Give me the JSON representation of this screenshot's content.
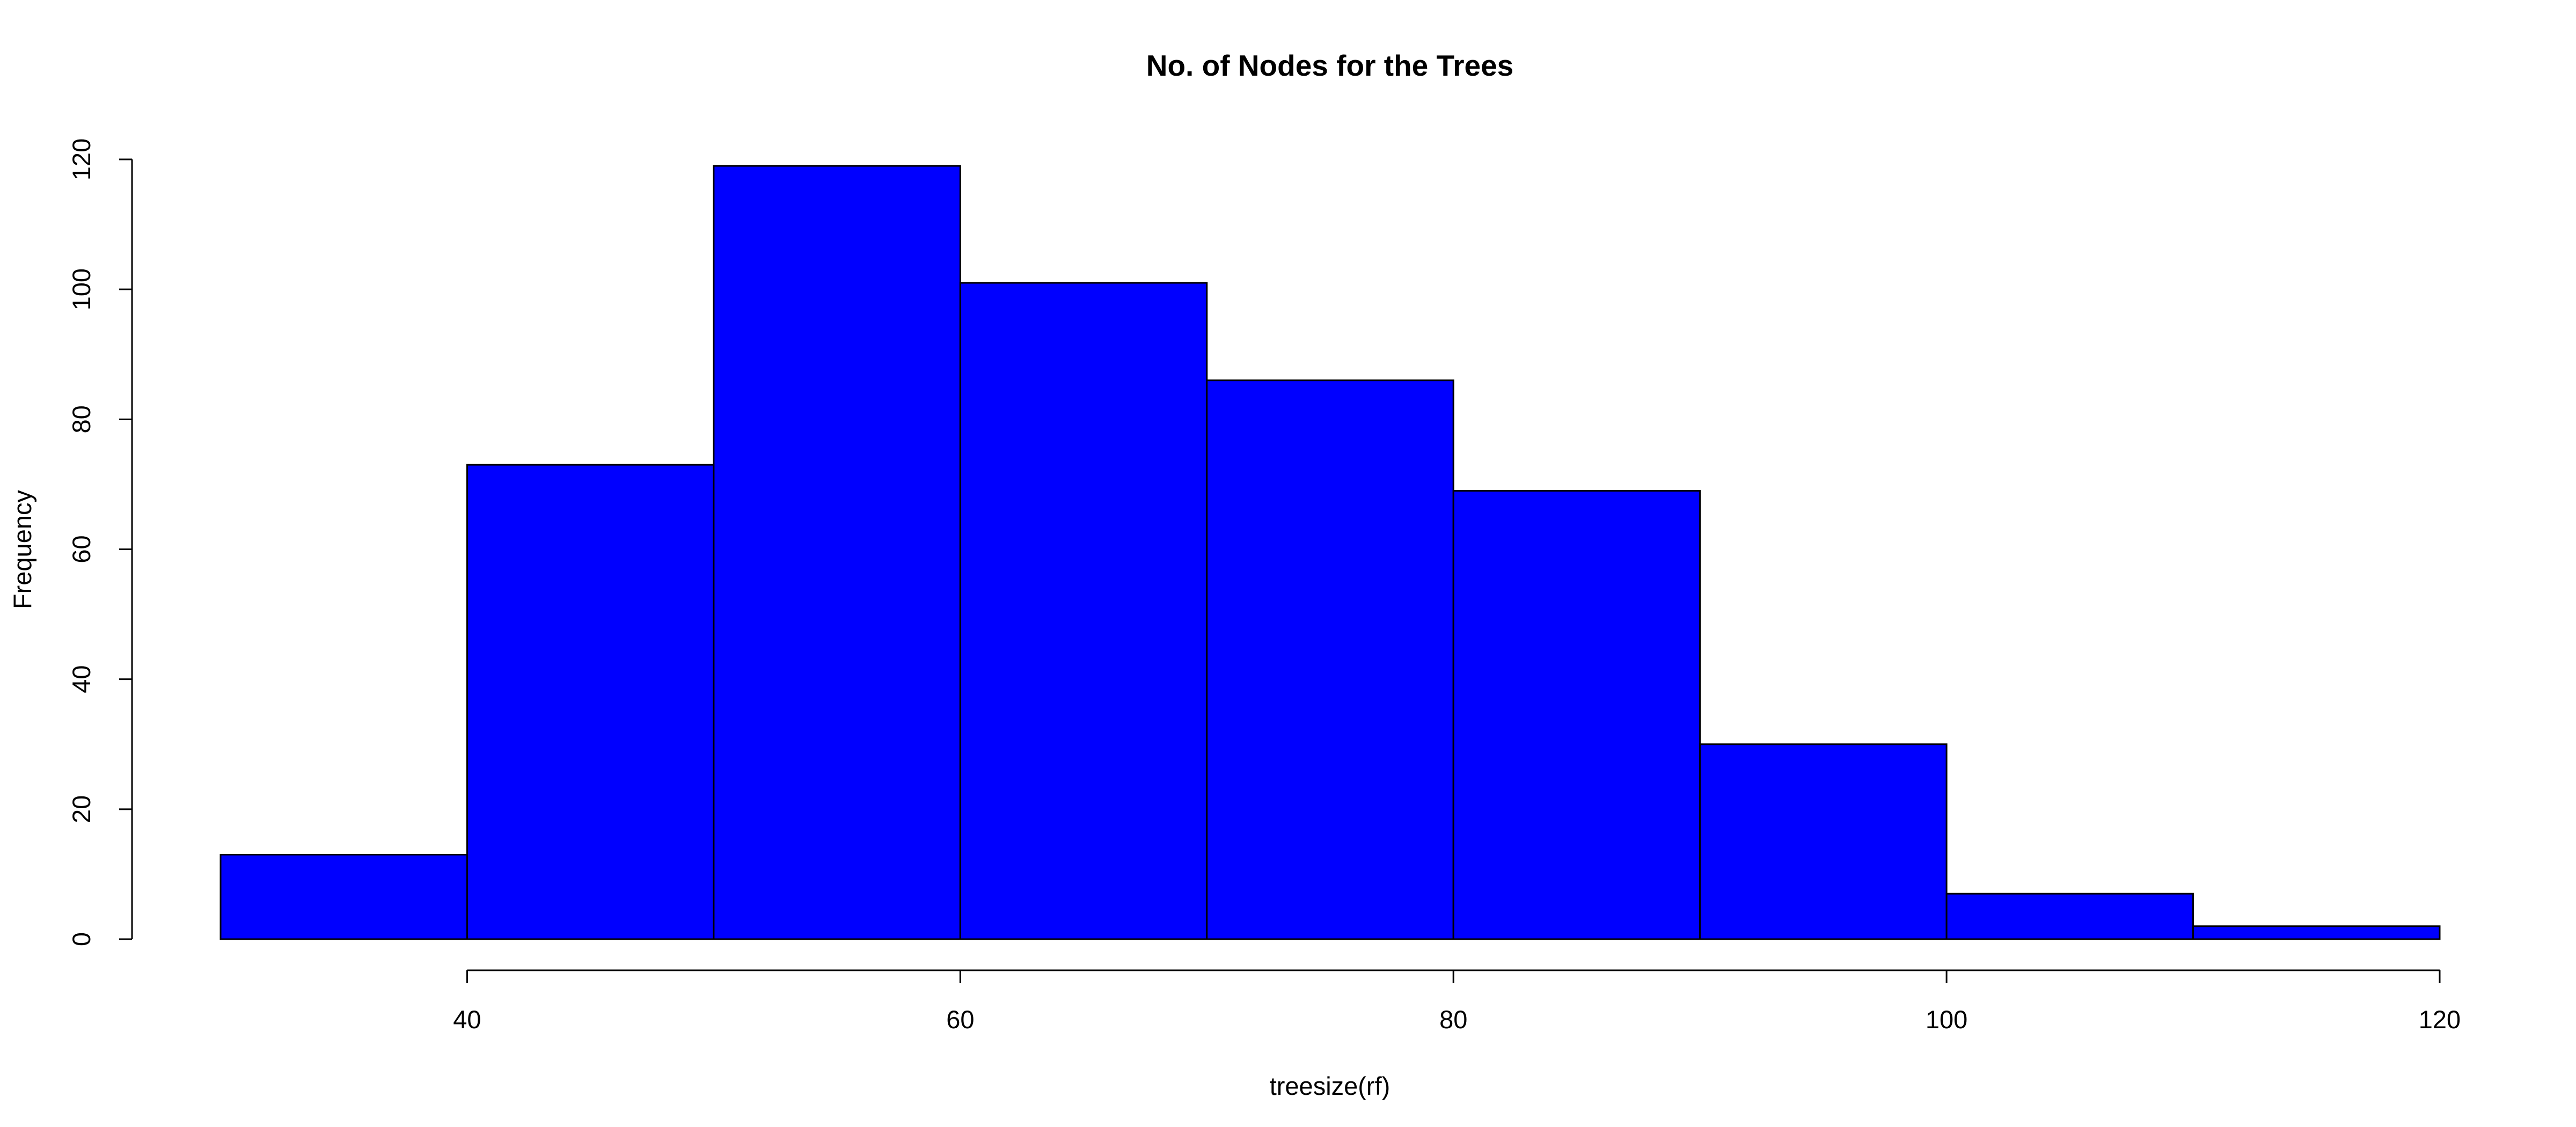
{
  "chart_data": {
    "type": "bar",
    "title": "No. of Nodes for the Trees",
    "xlabel": "treesize(rf)",
    "ylabel": "Frequency",
    "bins": [
      {
        "from": 30,
        "to": 40,
        "count": 13
      },
      {
        "from": 40,
        "to": 50,
        "count": 73
      },
      {
        "from": 50,
        "to": 60,
        "count": 119
      },
      {
        "from": 60,
        "to": 70,
        "count": 101
      },
      {
        "from": 70,
        "to": 80,
        "count": 86
      },
      {
        "from": 80,
        "to": 90,
        "count": 69
      },
      {
        "from": 90,
        "to": 100,
        "count": 30
      },
      {
        "from": 100,
        "to": 110,
        "count": 7
      },
      {
        "from": 110,
        "to": 120,
        "count": 2
      }
    ],
    "xlim": [
      30,
      120
    ],
    "ylim": [
      0,
      120
    ],
    "x_ticks": [
      40,
      60,
      80,
      100,
      120
    ],
    "y_ticks": [
      0,
      20,
      40,
      60,
      80,
      100,
      120
    ],
    "bar_color": "#0000ff",
    "bar_border_color": "#000000",
    "grid": false,
    "legend": false
  }
}
